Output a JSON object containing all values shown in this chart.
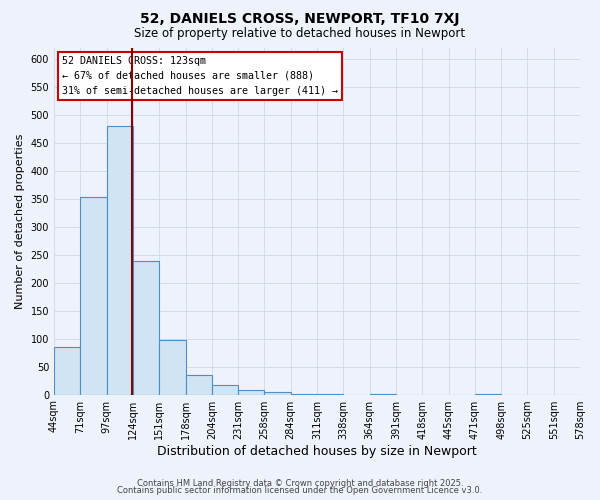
{
  "title": "52, DANIELS CROSS, NEWPORT, TF10 7XJ",
  "subtitle": "Size of property relative to detached houses in Newport",
  "xlabel": "Distribution of detached houses by size in Newport",
  "ylabel": "Number of detached properties",
  "bin_edges": [
    44,
    71,
    98,
    125,
    152,
    179,
    206,
    233,
    260,
    287,
    314,
    341,
    368,
    395,
    422,
    449,
    476,
    503,
    530,
    557,
    584
  ],
  "bin_labels": [
    "44sqm",
    "71sqm",
    "97sqm",
    "124sqm",
    "151sqm",
    "178sqm",
    "204sqm",
    "231sqm",
    "258sqm",
    "284sqm",
    "311sqm",
    "338sqm",
    "364sqm",
    "391sqm",
    "418sqm",
    "445sqm",
    "471sqm",
    "498sqm",
    "525sqm",
    "551sqm",
    "578sqm"
  ],
  "counts": [
    85,
    353,
    480,
    238,
    97,
    35,
    18,
    8,
    5,
    1,
    1,
    0,
    1,
    0,
    0,
    0,
    1,
    0,
    0,
    0,
    1
  ],
  "bar_color": "#d0e4f4",
  "bar_edge_color": "#4d8fc4",
  "property_line_x": 124,
  "property_line_color": "#8b0000",
  "ylim": [
    0,
    620
  ],
  "yticks": [
    0,
    50,
    100,
    150,
    200,
    250,
    300,
    350,
    400,
    450,
    500,
    550,
    600
  ],
  "annotation_title": "52 DANIELS CROSS: 123sqm",
  "annotation_line1": "← 67% of detached houses are smaller (888)",
  "annotation_line2": "31% of semi-detached houses are larger (411) →",
  "bg_color": "#eef2fa",
  "grid_color": "#d0d8e8",
  "footer_line1": "Contains HM Land Registry data © Crown copyright and database right 2025.",
  "footer_line2": "Contains public sector information licensed under the Open Government Licence v3.0."
}
